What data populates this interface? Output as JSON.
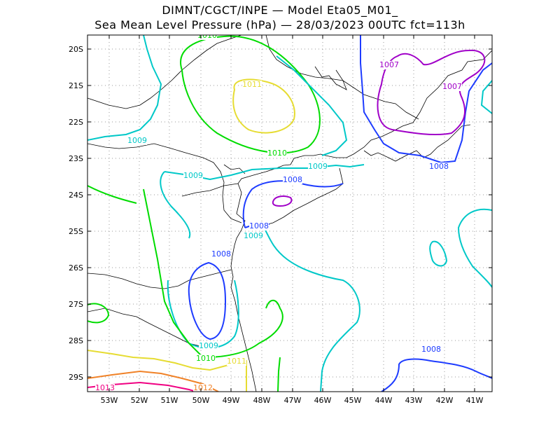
{
  "title": {
    "line1": "DIMNT/CGCT/INPE —  Model Eta05_M01_",
    "line2": "Sea Mean Level Pressure (hPa) — 28/03/2023 00UTC fct=113h"
  },
  "axes": {
    "lat_labels": [
      "20S",
      "21S",
      "22S",
      "23S",
      "24S",
      "25S",
      "26S",
      "27S",
      "28S",
      "29S"
    ],
    "lon_labels": [
      "53W",
      "52W",
      "51W",
      "50W",
      "49W",
      "48W",
      "47W",
      "46W",
      "45W",
      "44W",
      "43W",
      "42W",
      "41W"
    ]
  },
  "contour_levels": [
    {
      "value": 1007,
      "color": "#a000c8"
    },
    {
      "value": 1008,
      "color": "#1e3cff"
    },
    {
      "value": 1009,
      "color": "#00c8c8"
    },
    {
      "value": 1010,
      "color": "#00dc00"
    },
    {
      "value": 1011,
      "color": "#e6dc32"
    },
    {
      "value": 1012,
      "color": "#f08228"
    },
    {
      "value": 1013,
      "color": "#f00082"
    }
  ],
  "contour_labels": [
    {
      "text": "1010"
    },
    {
      "text": "1011"
    },
    {
      "text": "1010"
    },
    {
      "text": "1009"
    },
    {
      "text": "1009"
    },
    {
      "text": "1009"
    },
    {
      "text": "1008"
    },
    {
      "text": "1008"
    },
    {
      "text": "1009"
    },
    {
      "text": "1008"
    },
    {
      "text": "1009"
    },
    {
      "text": "1010"
    },
    {
      "text": "1011"
    },
    {
      "text": "1012"
    },
    {
      "text": "1013"
    },
    {
      "text": "1007"
    },
    {
      "text": "1007"
    },
    {
      "text": "1008"
    },
    {
      "text": "1008"
    }
  ]
}
